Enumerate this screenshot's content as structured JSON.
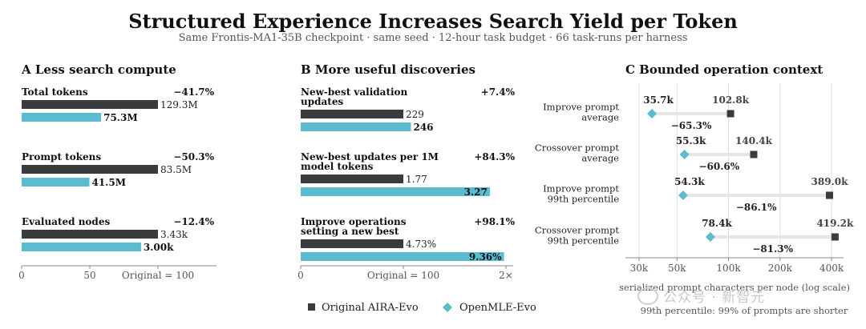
{
  "title": "Structured Experience Increases Search Yield per Token",
  "subtitle": "Same Frontis-MA1-35B checkpoint  ·  same seed  ·  12-hour task budget  ·  66 task-runs per harness",
  "legend": {
    "items": [
      {
        "label": "Original AIRA-Evo",
        "color": "#3a3b3d",
        "marker": "square"
      },
      {
        "label": "OpenMLE-Evo",
        "color": "#5bbcd0",
        "marker": "diamond"
      }
    ]
  },
  "watermark": "公众号 · 新智元",
  "colors": {
    "original": "#3a3b3d",
    "openmle": "#5bbcd0",
    "grid": "#dddddd",
    "connector": "#e6e6e6"
  },
  "chart_data": [
    {
      "type": "bar",
      "panel": "A",
      "title": "Less search compute",
      "xlabel": "Original = 100",
      "xlim": [
        0,
        140
      ],
      "xticks": [
        "0",
        "50",
        "Original = 100"
      ],
      "groups": [
        {
          "label": "Total tokens",
          "change": "−41.7%",
          "original": {
            "value": 100,
            "label": "129.3M"
          },
          "openmle": {
            "value": 58.3,
            "label": "75.3M"
          }
        },
        {
          "label": "Prompt tokens",
          "change": "−50.3%",
          "original": {
            "value": 100,
            "label": "83.5M"
          },
          "openmle": {
            "value": 49.7,
            "label": "41.5M"
          }
        },
        {
          "label": "Evaluated nodes",
          "change": "−12.4%",
          "original": {
            "value": 100,
            "label": "3.43k"
          },
          "openmle": {
            "value": 87.6,
            "label": "3.00k"
          }
        }
      ]
    },
    {
      "type": "bar",
      "panel": "B",
      "title": "More useful discoveries",
      "xlabel": "Original = 100",
      "xlim": [
        0,
        200
      ],
      "xticks": [
        "0",
        "Original = 100",
        "2×"
      ],
      "groups": [
        {
          "label": "New-best validation updates",
          "change": "+7.4%",
          "original": {
            "value": 100,
            "label": "229"
          },
          "openmle": {
            "value": 107.4,
            "label": "246"
          }
        },
        {
          "label": "New-best updates per 1M model tokens",
          "change": "+84.3%",
          "original": {
            "value": 100,
            "label": "1.77"
          },
          "openmle": {
            "value": 184.3,
            "label": "3.27"
          }
        },
        {
          "label": "Improve operations setting a new best",
          "change": "+98.1%",
          "original": {
            "value": 100,
            "label": "4.73%"
          },
          "openmle": {
            "value": 198.1,
            "label": "9.36%"
          }
        }
      ]
    },
    {
      "type": "scatter",
      "panel": "C",
      "title": "Bounded operation context",
      "xscale": "log",
      "xlim": [
        25000,
        470000
      ],
      "xticks": [
        {
          "value": 30000,
          "label": "30k"
        },
        {
          "value": 50000,
          "label": "50k"
        },
        {
          "value": 100000,
          "label": "100k"
        },
        {
          "value": 200000,
          "label": "200k"
        },
        {
          "value": 400000,
          "label": "400k"
        }
      ],
      "xlabel": "serialized prompt characters per node (log scale)",
      "note": "99th percentile: 99% of prompts are shorter",
      "rows": [
        {
          "label": "Improve prompt average",
          "openmle": 35700,
          "original": 102800,
          "openmle_label": "35.7k",
          "original_label": "102.8k",
          "change": "−65.3%"
        },
        {
          "label": "Crossover prompt average",
          "openmle": 55300,
          "original": 140400,
          "openmle_label": "55.3k",
          "original_label": "140.4k",
          "change": "−60.6%"
        },
        {
          "label": "Improve prompt 99th percentile",
          "openmle": 54300,
          "original": 389000,
          "openmle_label": "54.3k",
          "original_label": "389.0k",
          "change": "−86.1%"
        },
        {
          "label": "Crossover prompt 99th percentile",
          "openmle": 78400,
          "original": 419200,
          "openmle_label": "78.4k",
          "original_label": "419.2k",
          "change": "−81.3%"
        }
      ]
    }
  ]
}
